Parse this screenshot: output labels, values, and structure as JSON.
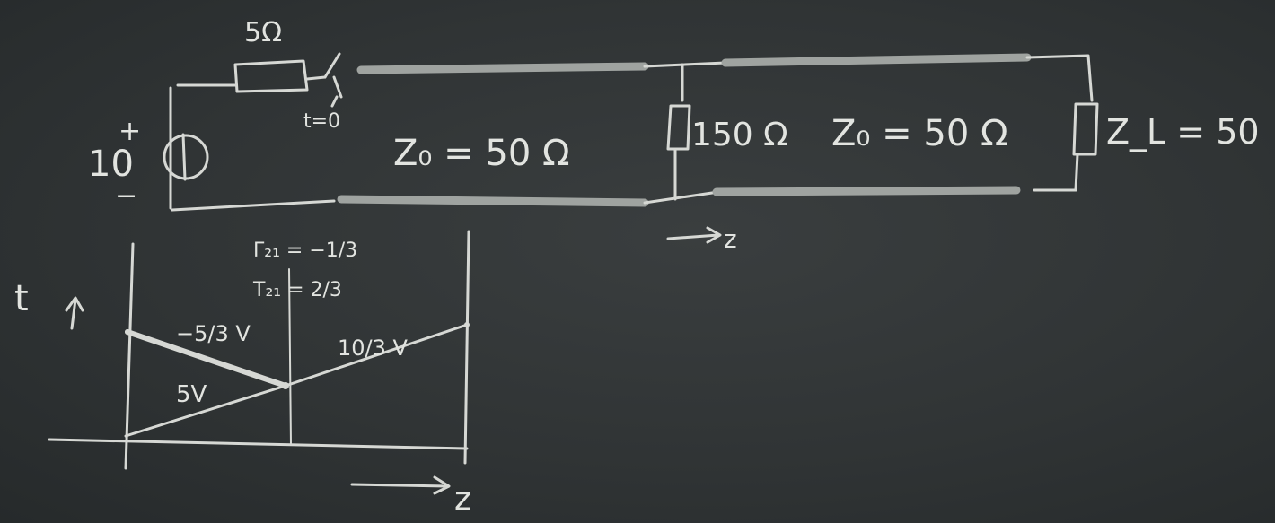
{
  "colors": {
    "board": "#2e3233",
    "chalk": "#d6d8d4",
    "cable": "#9fa3a0"
  },
  "circuit": {
    "source_value": "10",
    "source_plus": "+",
    "source_minus": "−",
    "source_resistor": "5Ω",
    "switch_time": "t=0",
    "line1_impedance": "Z₀ = 50 Ω",
    "shunt_resistor": "150 Ω",
    "line2_impedance": "Z₀ = 50 Ω",
    "load_impedance": "Z_L = 50",
    "z_axis_label": "z"
  },
  "bounce_diagram": {
    "t_axis_label": "t",
    "z_axis_label": "z",
    "reflection_coefficient": "Γ₂₁ = −1/3",
    "transmission_coefficient": "T₂₁ = 2/3",
    "incident_wave": "5V",
    "reflected_wave": "−5/3 V",
    "transmitted_wave": "10/3 V"
  }
}
